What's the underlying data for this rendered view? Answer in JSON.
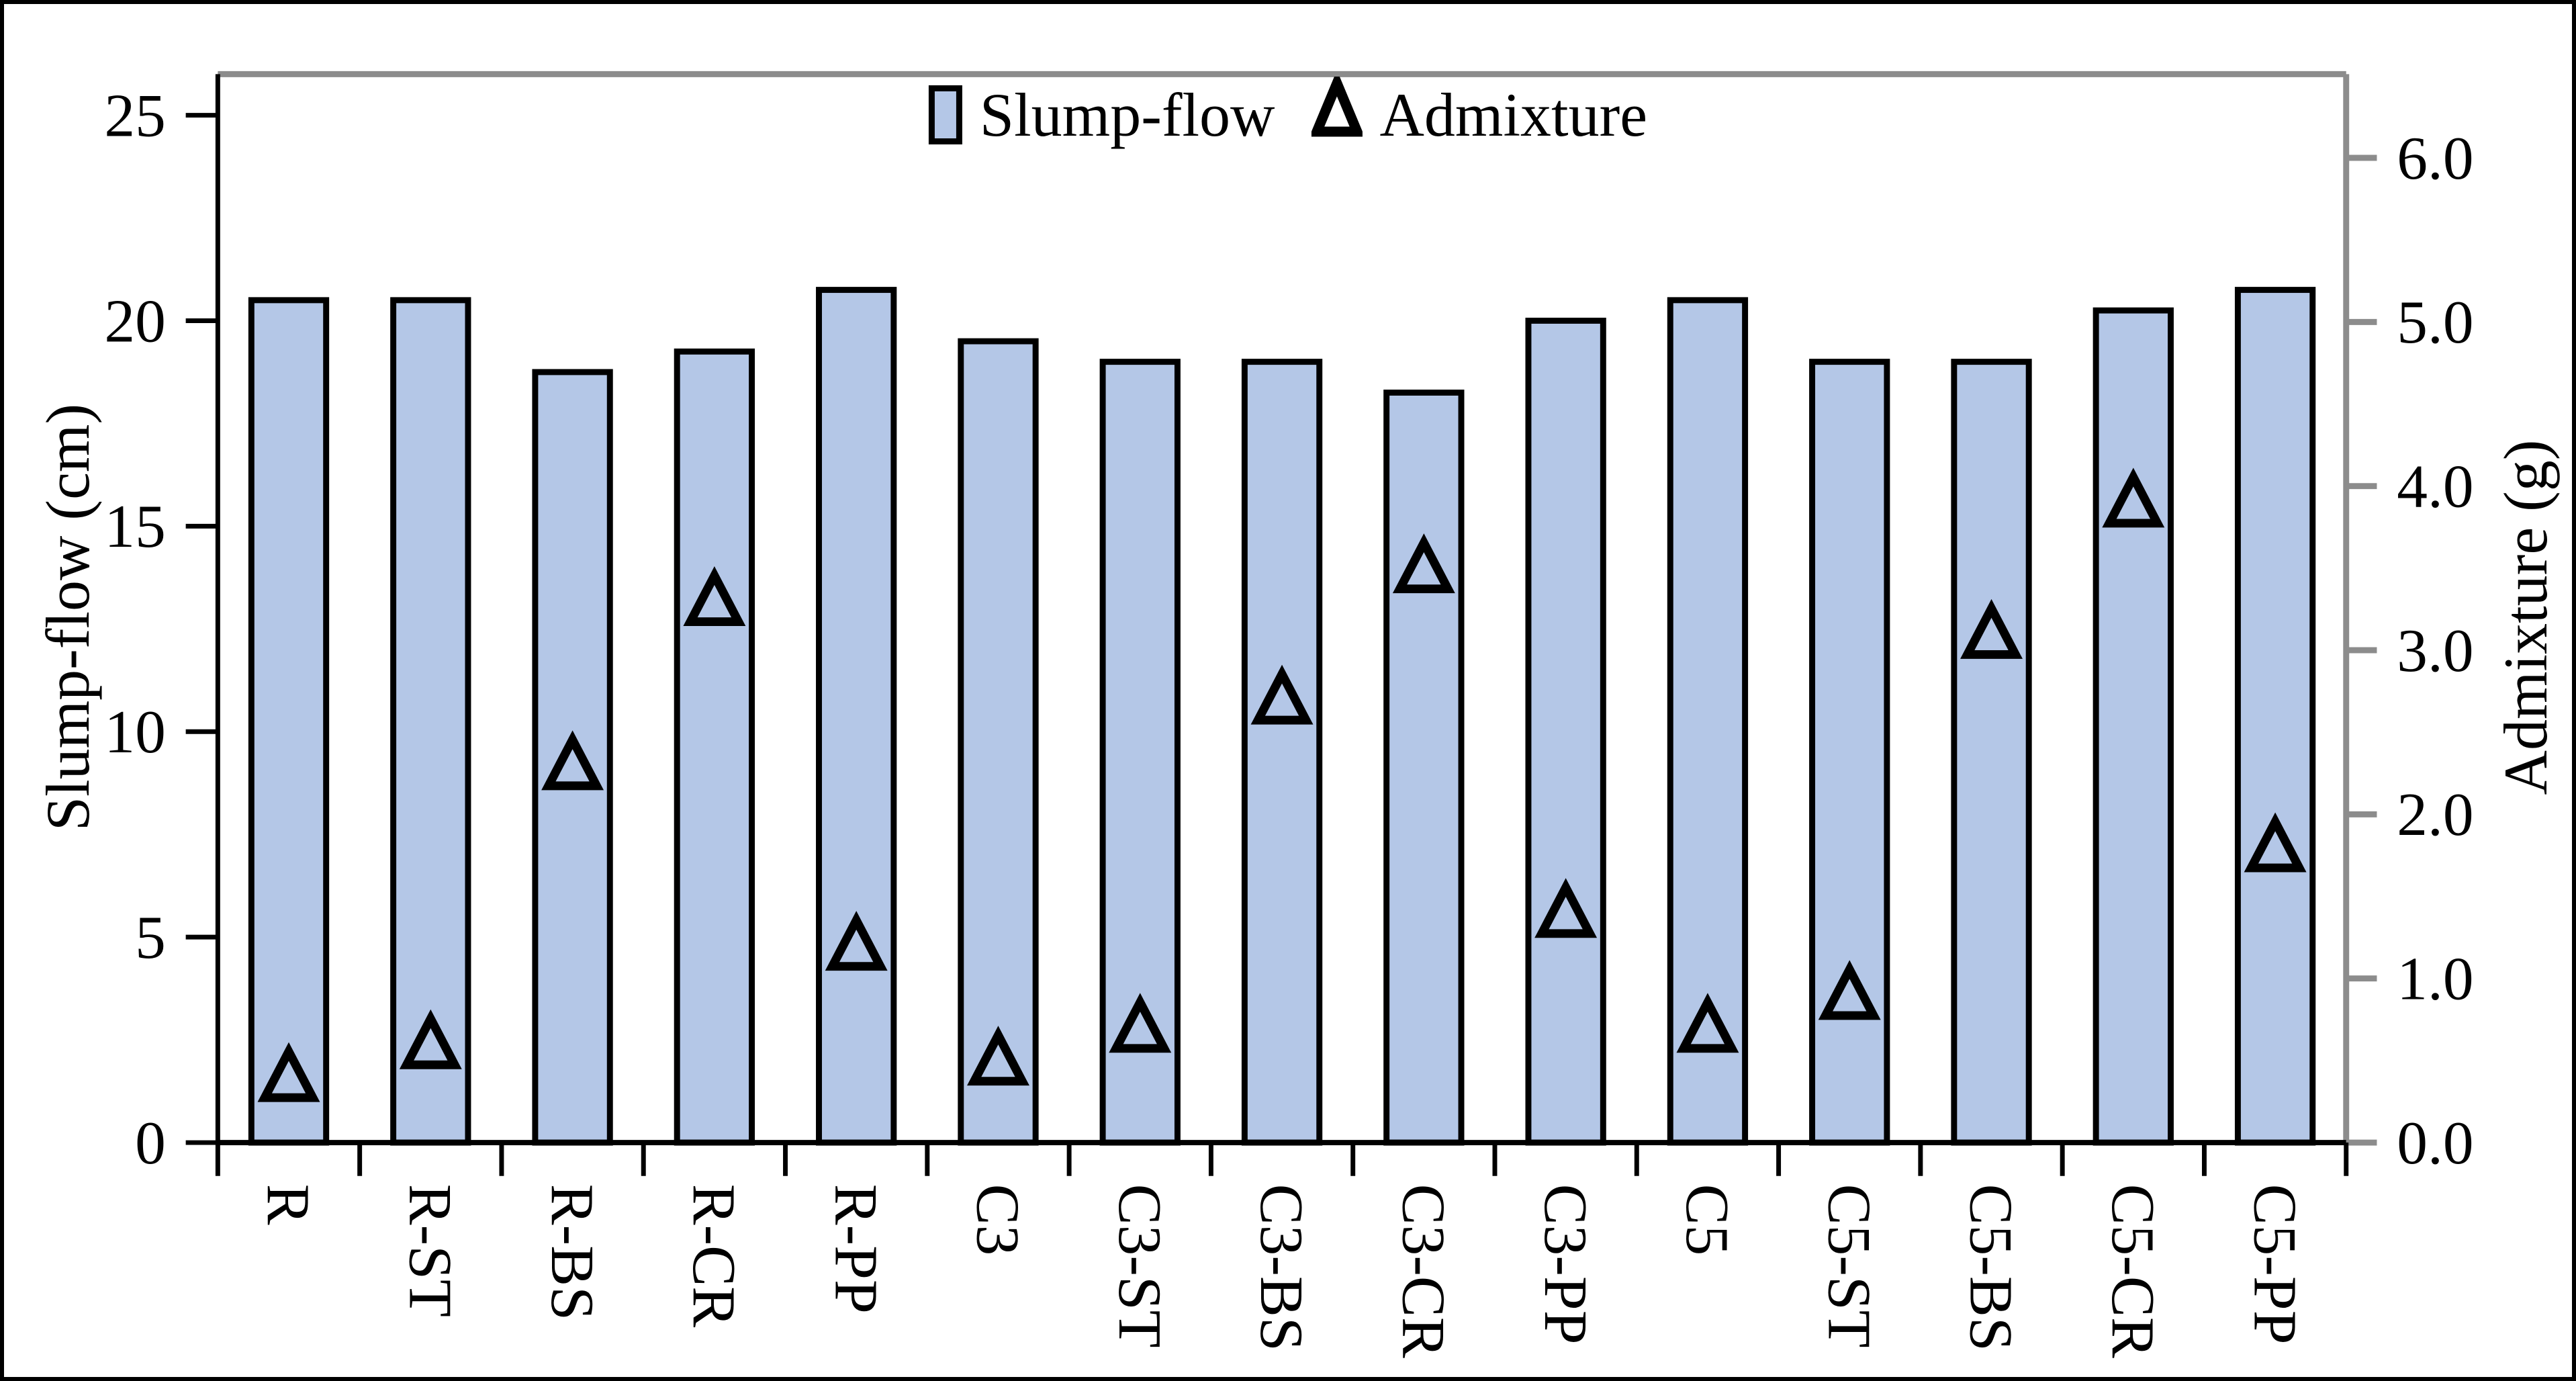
{
  "chart_data": {
    "type": "bar",
    "subtype": "dual-axis bar with triangle scatter overlay",
    "categories": [
      "R",
      "R-ST",
      "R-BS",
      "R-CR",
      "R-PP",
      "C3",
      "C3-ST",
      "C3-BS",
      "C3-CR",
      "C3-PP",
      "C5",
      "C5-ST",
      "C5-BS",
      "C5-CR",
      "C5-PP"
    ],
    "series": [
      {
        "name": "Slump-flow",
        "type": "bar",
        "axis": "left",
        "values": [
          20.5,
          20.5,
          18.75,
          19.25,
          20.75,
          19.5,
          19.0,
          19.0,
          18.25,
          20.0,
          20.5,
          19.0,
          19.0,
          20.25,
          20.75
        ],
        "fill": "#B4C7E7",
        "stroke": "#000000"
      },
      {
        "name": "Admixture",
        "type": "scatter",
        "marker": "triangle-outline",
        "axis": "right",
        "values": [
          0.4,
          0.6,
          2.3,
          3.3,
          1.2,
          0.5,
          0.7,
          2.7,
          3.5,
          1.4,
          0.7,
          0.9,
          3.1,
          3.9,
          1.8
        ],
        "stroke": "#000000"
      }
    ],
    "left_axis": {
      "title": "Slump-flow (cm)",
      "tick_labels": [
        "0",
        "5",
        "10",
        "15",
        "20",
        "25"
      ],
      "tick_values": [
        0,
        5,
        10,
        15,
        20,
        25
      ],
      "range_max_drawn": 26
    },
    "right_axis": {
      "title": "Admixture (g)",
      "tick_labels": [
        "0.0",
        "1.0",
        "2.0",
        "3.0",
        "4.0",
        "5.0",
        "6.0"
      ],
      "tick_values": [
        0,
        1,
        2,
        3,
        4,
        5,
        6
      ],
      "range_max_drawn": 6.51
    },
    "legend": [
      {
        "label": "Slump-flow",
        "marker": "square"
      },
      {
        "label": "Admixture",
        "marker": "triangle"
      }
    ],
    "grid": "off",
    "legend_position": "top-center",
    "colors": {
      "bar_fill": "#B4C7E7",
      "bar_border": "#000000",
      "primary_axis": "#000000",
      "secondary_axis": "#8C8C8C",
      "text": "#000000",
      "background": "#FFFFFF"
    }
  }
}
